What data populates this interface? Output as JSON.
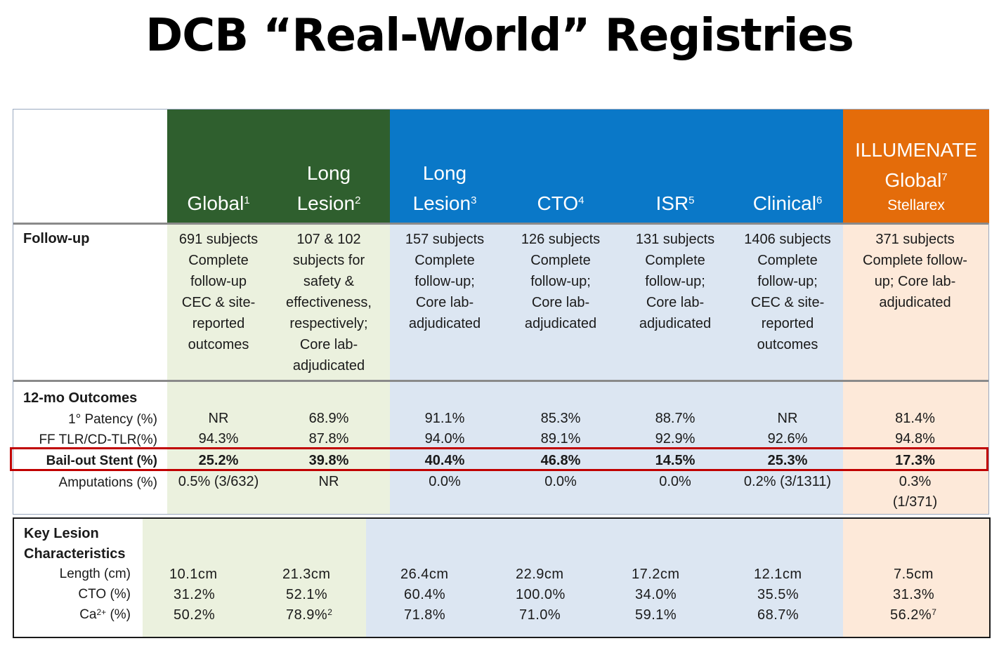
{
  "title": "DCB “Real-World” Registries",
  "colors": {
    "global": "#2f5f2e",
    "blue": "#0a78c8",
    "orange": "#e46c0a",
    "green_bg": "#ebf1de",
    "blue_bg": "#dce6f2",
    "orange_bg": "#fde9d9",
    "highlight": "#c00000"
  },
  "headers": [
    {
      "main": "Global",
      "sup": "1"
    },
    {
      "line1": "Long",
      "main": "Lesion",
      "sup": "2"
    },
    {
      "line1": "Long",
      "main": "Lesion",
      "sup": "3"
    },
    {
      "main": "CTO",
      "sup": "4"
    },
    {
      "main": "ISR",
      "sup": "5"
    },
    {
      "main": "Clinical",
      "sup": "6"
    },
    {
      "line1": "ILLUMENATE",
      "main": "Global",
      "sup": "7",
      "sub": "Stellarex"
    }
  ],
  "followup": {
    "label": "Follow-up",
    "cells": [
      [
        "691 subjects",
        "Complete",
        "follow-up",
        "CEC & site-",
        "reported",
        "outcomes"
      ],
      [
        "107 & 102",
        "subjects for",
        "safety &",
        "effectiveness,",
        "respectively;",
        "Core lab-",
        "adjudicated"
      ],
      [
        "157 subjects",
        "Complete",
        "follow-up;",
        "Core lab-",
        "adjudicated"
      ],
      [
        "126 subjects",
        "Complete",
        "follow-up;",
        "Core lab-",
        "adjudicated"
      ],
      [
        "131 subjects",
        "Complete",
        "follow-up;",
        "Core lab-",
        "adjudicated"
      ],
      [
        "1406 subjects",
        "Complete",
        "follow-up;",
        "CEC & site-",
        "reported",
        "outcomes"
      ],
      [
        "371 subjects",
        "Complete follow-",
        "up; Core lab-",
        "adjudicated"
      ]
    ]
  },
  "outcomes": {
    "label": "12-mo Outcomes",
    "rows": [
      {
        "label": "1° Patency (%)",
        "values": [
          "NR",
          "68.9%",
          "91.1%",
          "85.3%",
          "88.7%",
          "NR",
          "81.4%"
        ]
      },
      {
        "label": "FF TLR/CD-TLR(%)",
        "values": [
          "94.3%",
          "87.8%",
          "94.0%",
          "89.1%",
          "92.9%",
          "92.6%",
          "94.8%"
        ]
      },
      {
        "label": "Bail-out Stent (%)",
        "values": [
          "25.2%",
          "39.8%",
          "40.4%",
          "46.8%",
          "14.5%",
          "25.3%",
          "17.3%"
        ]
      },
      {
        "label": "Amputations (%)",
        "values": [
          "0.5% (3/632)",
          "NR",
          "0.0%",
          "0.0%",
          "0.0%",
          "0.2% (3/1311)",
          "0.3%"
        ],
        "extra": "(1/371)"
      }
    ]
  },
  "lesion": {
    "label1": "Key Lesion",
    "label2": "Characteristics",
    "rows": [
      {
        "label": "Length (cm)",
        "values": [
          "10.1cm",
          "21.3cm",
          "26.4cm",
          "22.9cm",
          "17.2cm",
          "12.1cm",
          "7.5cm"
        ]
      },
      {
        "label": "CTO (%)",
        "values": [
          "31.2%",
          "52.1%",
          "60.4%",
          "100.0%",
          "34.0%",
          "35.5%",
          "31.3%"
        ]
      },
      {
        "label": "Ca",
        "label_sup": "2+",
        "label_tail": " (%)",
        "values": [
          "50.2%",
          "78.9%",
          "71.8%",
          "71.0%",
          "59.1%",
          "68.7%",
          "56.2%"
        ],
        "sups": [
          "",
          "2",
          "",
          "",
          "",
          "",
          "7"
        ]
      }
    ]
  }
}
